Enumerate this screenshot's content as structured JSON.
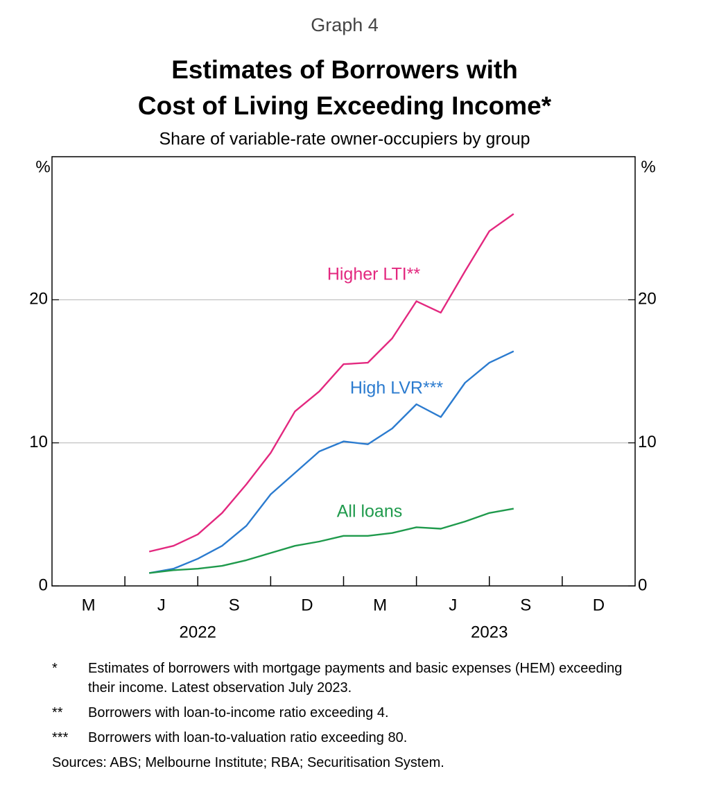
{
  "chart_data": {
    "type": "line",
    "graph_label": "Graph 4",
    "title": [
      "Estimates of Borrowers with",
      "Cost of Living Exceeding Income*"
    ],
    "subtitle": "Share of variable-rate owner-occupiers by group",
    "y_unit": "%",
    "categories": [
      "M",
      "J",
      "S",
      "D",
      "M",
      "J",
      "S",
      "D"
    ],
    "years": [
      "2022",
      "2023"
    ],
    "xlim": [
      0,
      24
    ],
    "x": [
      4,
      5,
      6,
      7,
      8,
      9,
      10,
      11,
      12,
      13,
      14,
      15,
      16,
      17,
      18,
      19
    ],
    "ylim": [
      0,
      30
    ],
    "yticks": [
      0,
      10,
      20
    ],
    "grid": true,
    "series": [
      {
        "name": "Higher LTI**",
        "color": "#e3287f",
        "values": [
          2.4,
          2.8,
          3.6,
          5.1,
          7.1,
          9.3,
          12.2,
          13.6,
          15.5,
          15.6,
          17.3,
          19.9,
          19.1,
          22.0,
          24.8,
          26.0
        ]
      },
      {
        "name": "High LVR***",
        "color": "#2b7bcf",
        "values": [
          0.9,
          1.2,
          1.9,
          2.8,
          4.2,
          6.4,
          7.9,
          9.4,
          10.1,
          9.9,
          11.0,
          12.7,
          11.8,
          14.2,
          15.6,
          16.4
        ]
      },
      {
        "name": "All loans",
        "color": "#1f9a4c",
        "values": [
          0.9,
          1.1,
          1.2,
          1.4,
          1.8,
          2.3,
          2.8,
          3.1,
          3.5,
          3.5,
          3.7,
          4.1,
          4.0,
          4.5,
          5.1,
          5.4
        ]
      }
    ],
    "footnotes": [
      {
        "marker": "*",
        "text": "Estimates of borrowers with mortgage payments and basic expenses (HEM) exceeding their income. Latest observation July 2023."
      },
      {
        "marker": "**",
        "text": "Borrowers with loan-to-income ratio exceeding 4."
      },
      {
        "marker": "***",
        "text": "Borrowers with loan-to-valuation ratio exceeding 80."
      }
    ],
    "sources": "Sources: ABS; Melbourne Institute; RBA; Securitisation System."
  }
}
